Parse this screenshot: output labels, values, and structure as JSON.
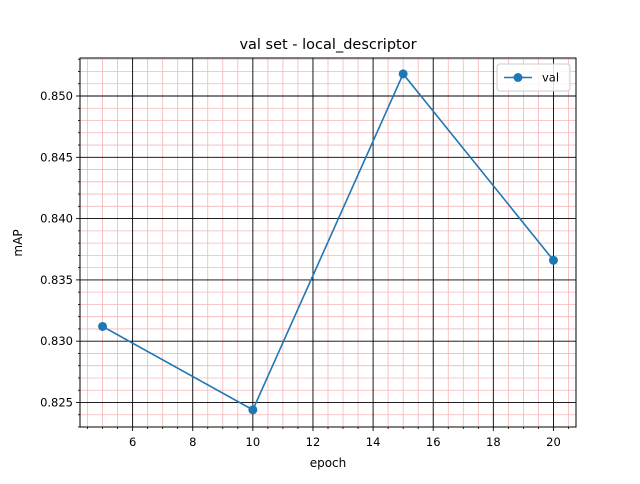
{
  "chart_data": {
    "type": "line",
    "title": "val set - local_descriptor",
    "xlabel": "epoch",
    "ylabel": "mAP",
    "xlim": [
      4.25,
      20.75
    ],
    "ylim": [
      0.823,
      0.8531
    ],
    "xticks": [
      6,
      8,
      10,
      12,
      14,
      16,
      18,
      20
    ],
    "xtick_labels": [
      "6",
      "8",
      "10",
      "12",
      "14",
      "16",
      "18",
      "20"
    ],
    "yticks": [
      0.825,
      0.83,
      0.835,
      0.84,
      0.845,
      0.85
    ],
    "ytick_labels": [
      "0.825",
      "0.830",
      "0.835",
      "0.840",
      "0.845",
      "0.850"
    ],
    "grid": true,
    "legend_position": "top-right",
    "series": [
      {
        "name": "val",
        "color": "#1f77b4",
        "marker": "circle",
        "x": [
          5,
          10,
          15,
          20
        ],
        "y": [
          0.8312,
          0.8244,
          0.8518,
          0.8366
        ]
      }
    ],
    "colors": {
      "major_grid": "#000000",
      "minor_grid": "#f4b6b6",
      "axes": "#000000"
    }
  }
}
